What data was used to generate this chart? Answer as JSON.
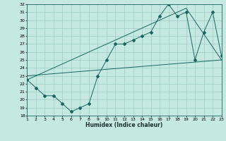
{
  "xlabel": "Humidex (Indice chaleur)",
  "ylabel": "",
  "bg_color": "#c5e8e0",
  "grid_color": "#9eccc4",
  "line_color": "#1a6660",
  "xlim": [
    1,
    23
  ],
  "ylim": [
    18,
    32
  ],
  "xticks": [
    1,
    2,
    3,
    4,
    5,
    6,
    7,
    8,
    9,
    10,
    11,
    12,
    13,
    14,
    15,
    16,
    17,
    18,
    19,
    20,
    21,
    22,
    23
  ],
  "yticks": [
    18,
    19,
    20,
    21,
    22,
    23,
    24,
    25,
    26,
    27,
    28,
    29,
    30,
    31,
    32
  ],
  "line1_x": [
    1,
    2,
    3,
    4,
    5,
    6,
    7,
    8,
    9,
    10,
    11,
    12,
    13,
    14,
    15,
    16,
    17,
    18,
    19,
    20,
    21,
    22,
    23
  ],
  "line1_y": [
    22.5,
    21.5,
    20.5,
    20.5,
    19.5,
    18.5,
    19.0,
    19.5,
    23.0,
    25.0,
    27.0,
    27.0,
    27.5,
    28.0,
    28.5,
    30.5,
    32.0,
    30.5,
    31.0,
    25.0,
    28.5,
    31.0,
    25.5
  ],
  "line2_x": [
    1,
    23
  ],
  "line2_y": [
    23.0,
    25.0
  ],
  "line3_x": [
    1,
    19,
    23
  ],
  "line3_y": [
    22.5,
    31.5,
    25.0
  ]
}
